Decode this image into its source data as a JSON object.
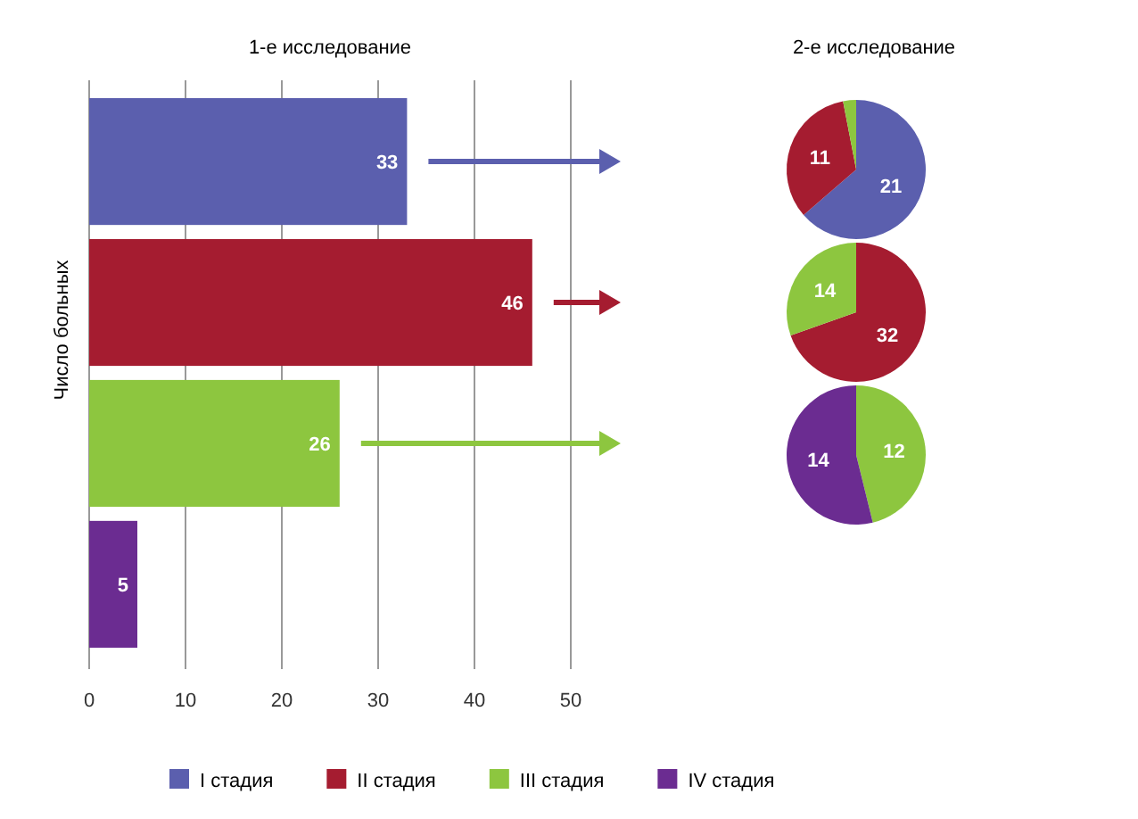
{
  "chart_data": [
    {
      "type": "bar",
      "orientation": "horizontal",
      "stacked": true,
      "title": "1-е исследование",
      "ylabel": "Число больных",
      "categories": [
        null,
        null,
        null,
        null
      ],
      "series": [
        {
          "name": "I стадия",
          "color": "#5b5fae",
          "values": [
            33,
            null,
            null,
            null
          ]
        },
        {
          "name": "II стадия",
          "color": "#a51c30",
          "values": [
            null,
            46,
            null,
            null
          ]
        },
        {
          "name": "III стадия",
          "color": "#8dc63f",
          "values": [
            null,
            null,
            26,
            null
          ]
        },
        {
          "name": "IV стадия",
          "color": "#6b2c91",
          "values": [
            null,
            null,
            null,
            5
          ]
        }
      ],
      "xlim": [
        0,
        50
      ],
      "xticks": [
        0,
        10,
        20,
        30,
        40,
        50
      ],
      "grid": "x",
      "data_labels": true,
      "legend": "bottom"
    },
    {
      "type": "pie",
      "title": "2-е исследование",
      "categories": [
        null,
        null,
        null
      ],
      "values": [
        21,
        11,
        1
      ],
      "colors": [
        "#5b5fae",
        "#a51c30",
        "#8dc63f"
      ],
      "value_labels": [
        "21",
        "11",
        null
      ]
    },
    {
      "type": "pie",
      "categories": [
        null,
        null
      ],
      "values": [
        32,
        14
      ],
      "colors": [
        "#a51c30",
        "#8dc63f"
      ],
      "data_labels": true
    },
    {
      "type": "pie",
      "categories": [
        null,
        null
      ],
      "values": [
        12,
        14
      ],
      "colors": [
        "#8dc63f",
        "#6b2c91"
      ],
      "data_labels": true
    }
  ]
}
